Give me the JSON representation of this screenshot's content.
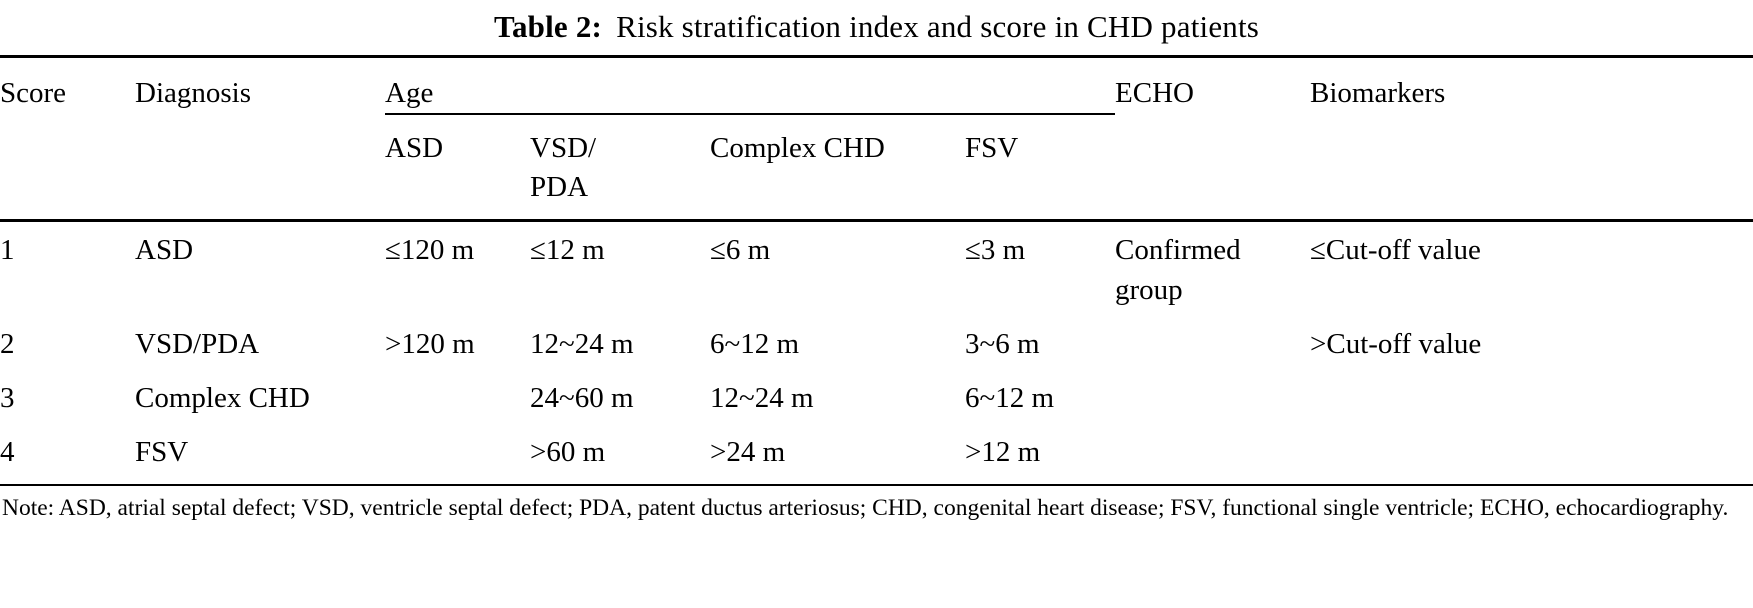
{
  "title": {
    "label": "Table 2:",
    "text": "Risk stratification index and score in CHD patients"
  },
  "table": {
    "headers": {
      "score": "Score",
      "diagnosis": "Diagnosis",
      "age": "Age",
      "age_subcolumns": [
        "ASD",
        "VSD/\nPDA",
        "Complex CHD",
        "FSV"
      ],
      "echo": "ECHO",
      "biomarkers": "Biomarkers"
    },
    "rows": [
      {
        "score": "1",
        "diagnosis": "ASD",
        "asd": "≤120 m",
        "vsd_pda": "≤12 m",
        "complex_chd": "≤6 m",
        "fsv": "≤3 m",
        "echo": "Confirmed group",
        "biomarkers": "≤Cut-off value"
      },
      {
        "score": "2",
        "diagnosis": "VSD/PDA",
        "asd": ">120 m",
        "vsd_pda": "12~24 m",
        "complex_chd": "6~12 m",
        "fsv": "3~6 m",
        "echo": "",
        "biomarkers": ">Cut-off value"
      },
      {
        "score": "3",
        "diagnosis": "Complex CHD",
        "asd": "",
        "vsd_pda": "24~60 m",
        "complex_chd": "12~24 m",
        "fsv": "6~12 m",
        "echo": "",
        "biomarkers": ""
      },
      {
        "score": "4",
        "diagnosis": "FSV",
        "asd": "",
        "vsd_pda": ">60 m",
        "complex_chd": ">24 m",
        "fsv": ">12 m",
        "echo": "",
        "biomarkers": ""
      }
    ]
  },
  "note": "Note: ASD, atrial septal defect; VSD, ventricle septal defect; PDA, patent ductus arteriosus; CHD, congenital heart disease; FSV, functional single ventricle; ECHO, echocardiography."
}
